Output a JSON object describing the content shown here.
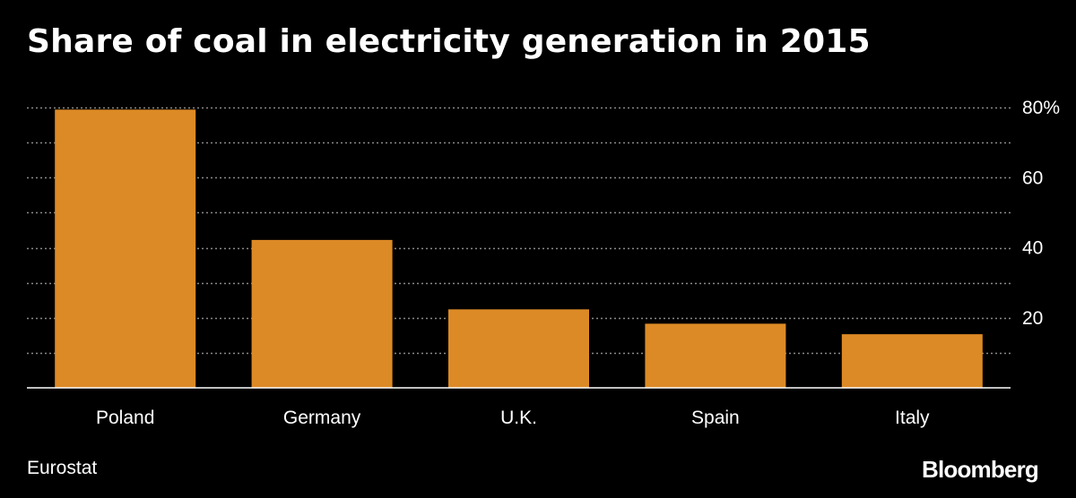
{
  "chart_data": {
    "type": "bar",
    "title": "Share of coal in electricity generation in 2015",
    "categories": [
      "Poland",
      "Germany",
      "U.K.",
      "Spain",
      "Italy"
    ],
    "values": [
      79.4,
      42.2,
      22.4,
      18.3,
      15.3
    ],
    "ylim": [
      0,
      80
    ],
    "yticks": [
      {
        "value": 20,
        "label": "20"
      },
      {
        "value": 40,
        "label": "40"
      },
      {
        "value": 60,
        "label": "60"
      },
      {
        "value": 80,
        "label": "80%"
      }
    ],
    "gridlines": [
      10,
      20,
      30,
      40,
      50,
      60,
      70,
      80
    ],
    "grid": true,
    "y_axis_side": "right",
    "xlabel": "",
    "ylabel": "",
    "source": "Eurostat",
    "colors": {
      "bar": "#dc8a26",
      "background": "#000000",
      "grid": "#8a8a8a",
      "text": "#ffffff"
    }
  },
  "branding": {
    "logo_text": "Bloomberg"
  }
}
